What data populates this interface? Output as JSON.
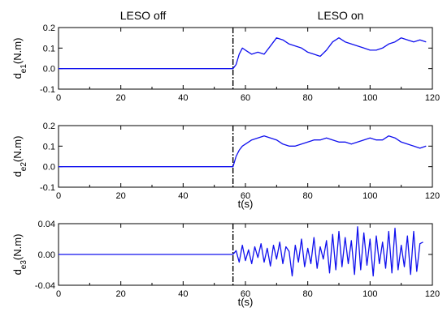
{
  "phase_labels": {
    "off": "LESO off",
    "on": "LESO on"
  },
  "colors": {
    "series": "#1010ee",
    "axes": "#000000",
    "switch_line": "#000000"
  },
  "chart_data": [
    {
      "type": "line",
      "ylabel_main": "d",
      "ylabel_sub": "e1",
      "ylabel_unit": "(N.m)",
      "xlabel": "",
      "xlim": [
        0,
        120
      ],
      "ylim": [
        -0.1,
        0.2
      ],
      "xticks": [
        "0",
        "20",
        "40",
        "60",
        "80",
        "100",
        "120"
      ],
      "yticks": [
        "-0.1",
        "0.0",
        "0.1",
        "0.2"
      ],
      "switch_time": 56,
      "end_time": 118,
      "series": [
        {
          "x": [
            0,
            56,
            57,
            58,
            59,
            60,
            62,
            64,
            66,
            68,
            70,
            72,
            74,
            76,
            78,
            80,
            82,
            84,
            86,
            88,
            90,
            92,
            94,
            96,
            98,
            100,
            102,
            104,
            106,
            108,
            110,
            112,
            114,
            116,
            118
          ],
          "values": [
            0,
            0,
            0.02,
            0.07,
            0.1,
            0.09,
            0.07,
            0.08,
            0.07,
            0.11,
            0.15,
            0.14,
            0.12,
            0.11,
            0.1,
            0.08,
            0.07,
            0.06,
            0.09,
            0.13,
            0.15,
            0.13,
            0.12,
            0.11,
            0.1,
            0.09,
            0.09,
            0.1,
            0.12,
            0.13,
            0.15,
            0.14,
            0.13,
            0.14,
            0.13
          ]
        }
      ]
    },
    {
      "type": "line",
      "ylabel_main": "d",
      "ylabel_sub": "e2",
      "ylabel_unit": "(N.m)",
      "xlabel": "t(s)",
      "xlim": [
        0,
        120
      ],
      "ylim": [
        -0.1,
        0.2
      ],
      "xticks": [
        "0",
        "20",
        "40",
        "60",
        "80",
        "100",
        "120"
      ],
      "yticks": [
        "-0.1",
        "0.0",
        "0.1",
        "0.2"
      ],
      "switch_time": 56,
      "end_time": 118,
      "series": [
        {
          "x": [
            0,
            56,
            57,
            58,
            59,
            60,
            62,
            64,
            66,
            68,
            70,
            72,
            74,
            76,
            78,
            80,
            82,
            84,
            86,
            88,
            90,
            92,
            94,
            96,
            98,
            100,
            102,
            104,
            106,
            108,
            110,
            112,
            114,
            116,
            118
          ],
          "values": [
            0,
            0,
            0.05,
            0.08,
            0.1,
            0.11,
            0.13,
            0.14,
            0.15,
            0.14,
            0.13,
            0.11,
            0.1,
            0.1,
            0.11,
            0.12,
            0.13,
            0.13,
            0.14,
            0.13,
            0.12,
            0.12,
            0.11,
            0.12,
            0.13,
            0.14,
            0.13,
            0.13,
            0.15,
            0.14,
            0.12,
            0.11,
            0.1,
            0.09,
            0.1
          ]
        }
      ]
    },
    {
      "type": "line",
      "ylabel_main": "d",
      "ylabel_sub": "e3",
      "ylabel_unit": "(N.m)",
      "xlabel": "t(s)",
      "xlim": [
        0,
        120
      ],
      "ylim": [
        -0.04,
        0.04
      ],
      "xticks": [
        "0",
        "20",
        "40",
        "60",
        "80",
        "100",
        "120"
      ],
      "yticks": [
        "-0.04",
        "0.00",
        "0.04"
      ],
      "switch_time": 56,
      "end_time": 118,
      "series": [
        {
          "x": [
            0,
            56,
            57,
            58,
            59,
            60,
            61,
            62,
            63,
            64,
            65,
            66,
            67,
            68,
            69,
            70,
            71,
            72,
            73,
            74,
            75,
            76,
            77,
            78,
            79,
            80,
            81,
            82,
            83,
            84,
            85,
            86,
            87,
            88,
            89,
            90,
            91,
            92,
            93,
            94,
            95,
            96,
            97,
            98,
            99,
            100,
            101,
            102,
            103,
            104,
            105,
            106,
            107,
            108,
            109,
            110,
            111,
            112,
            113,
            114,
            115,
            116,
            117
          ],
          "values": [
            0,
            0,
            0.005,
            -0.01,
            0.012,
            -0.008,
            0.006,
            -0.012,
            0.01,
            -0.004,
            0.014,
            -0.01,
            0.008,
            -0.015,
            0.012,
            -0.006,
            0.016,
            -0.012,
            0.01,
            0.004,
            -0.028,
            0.012,
            -0.01,
            0.02,
            -0.016,
            0.008,
            -0.012,
            0.022,
            -0.018,
            0.01,
            -0.006,
            0.018,
            -0.024,
            0.026,
            -0.02,
            0.03,
            -0.016,
            0.022,
            -0.012,
            0.018,
            -0.026,
            0.036,
            -0.02,
            0.028,
            -0.014,
            0.02,
            -0.028,
            0.024,
            -0.012,
            0.016,
            -0.018,
            0.03,
            -0.024,
            0.034,
            -0.02,
            0.012,
            -0.016,
            0.024,
            -0.026,
            0.03,
            -0.022,
            0.014,
            0.016
          ]
        }
      ]
    }
  ]
}
